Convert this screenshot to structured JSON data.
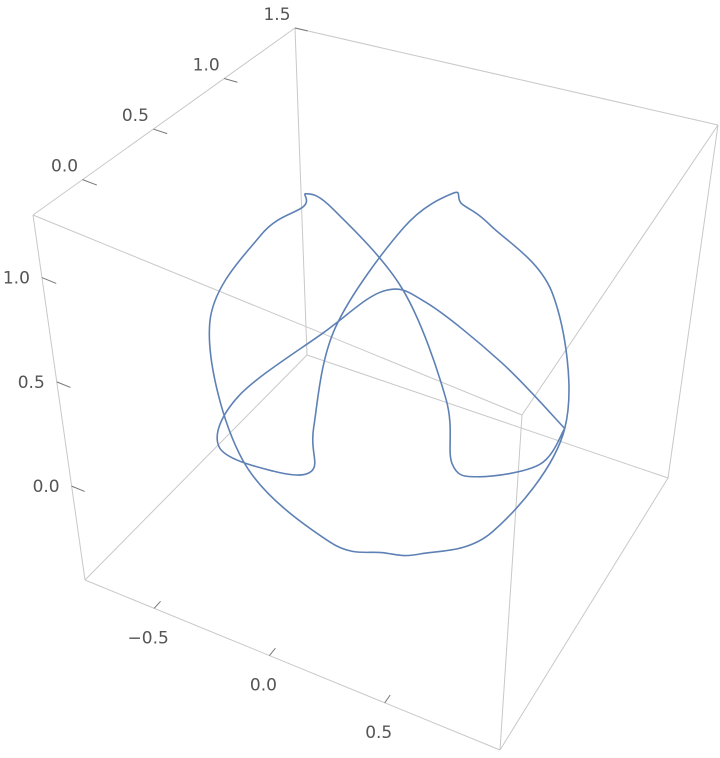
{
  "chart_data": {
    "type": "line3d",
    "color": "#5e81b5",
    "x": [
      0.85,
      0.667,
      0.379,
      0.236,
      0.1,
      -0.181,
      -0.384,
      -0.323,
      -0.241,
      -0.323,
      -0.384,
      -0.181,
      0.1,
      0.236,
      0.379,
      0.667,
      0.85,
      0.667,
      0.379,
      0.236,
      0.1,
      -0.181,
      -0.384,
      -0.323,
      -0.241,
      -0.323,
      -0.384,
      -0.181,
      0.1,
      0.236,
      0.379,
      0.667,
      0.85
    ],
    "y": [
      0.55,
      0.785,
      0.829,
      0.877,
      1.084,
      1.227,
      1.034,
      0.725,
      0.55,
      0.375,
      0.066,
      -0.127,
      0.016,
      0.223,
      0.271,
      0.315,
      0.55,
      0.785,
      0.829,
      0.877,
      1.084,
      1.227,
      1.034,
      0.725,
      0.55,
      0.375,
      0.066,
      -0.127,
      0.016,
      0.223,
      0.271,
      0.315,
      0.55
    ],
    "z": [
      0.45,
      0.019,
      -0.188,
      -0.212,
      -0.077,
      0.29,
      0.757,
      1.044,
      1.118,
      1.044,
      0.757,
      0.29,
      -0.077,
      -0.212,
      -0.188,
      0.019,
      0.45,
      0.881,
      1.088,
      1.112,
      0.977,
      0.61,
      0.143,
      -0.144,
      -0.218,
      -0.144,
      0.143,
      0.61,
      0.977,
      1.112,
      1.088,
      0.881,
      0.45
    ],
    "xlim": [
      -0.8,
      1.0
    ],
    "ylim": [
      -0.35,
      1.5
    ],
    "zlim": [
      -0.45,
      1.3
    ],
    "xticks": [
      {
        "value": -0.5,
        "label": "−0.5"
      },
      {
        "value": 0,
        "label": "0.0"
      },
      0.5
    ],
    "yticks": [
      {
        "value": 0,
        "label": "0.0"
      },
      0.5,
      {
        "value": 1,
        "label": "1.0"
      },
      1.5
    ],
    "zticks": [
      {
        "value": 0,
        "label": "0.0"
      },
      0.5,
      {
        "value": 1,
        "label": "1.0"
      }
    ]
  }
}
